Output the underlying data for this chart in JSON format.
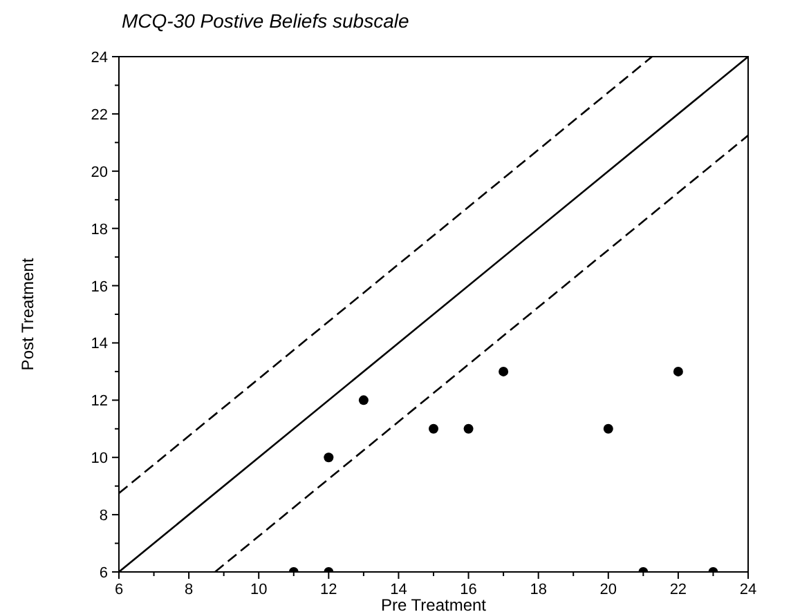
{
  "chart_data": {
    "type": "scatter",
    "title": "MCQ-30 Postive Beliefs subscale",
    "xlabel": "Pre Treatment",
    "ylabel": "Post Treatment",
    "xlim": [
      6,
      24
    ],
    "ylim": [
      6,
      24
    ],
    "xticks": [
      6,
      {
        "value": 7,
        "label": null
      },
      8,
      {
        "value": 9,
        "label": null
      },
      10,
      {
        "value": 11,
        "label": null
      },
      12,
      {
        "value": 13,
        "label": null
      },
      14,
      {
        "value": 15,
        "label": null
      },
      16,
      {
        "value": 17,
        "label": null
      },
      18,
      {
        "value": 19,
        "label": null
      },
      20,
      {
        "value": 21,
        "label": null
      },
      22,
      {
        "value": 23,
        "label": null
      },
      24
    ],
    "yticks": [
      6,
      {
        "value": 7,
        "label": null
      },
      8,
      {
        "value": 9,
        "label": null
      },
      10,
      {
        "value": 11,
        "label": null
      },
      12,
      {
        "value": 13,
        "label": null
      },
      14,
      {
        "value": 15,
        "label": null
      },
      16,
      {
        "value": 17,
        "label": null
      },
      18,
      {
        "value": 19,
        "label": null
      },
      20,
      {
        "value": 21,
        "label": null
      },
      22,
      {
        "value": 23,
        "label": null
      },
      24
    ],
    "grid": false,
    "series": [
      {
        "color": "#000000",
        "marker": "circle",
        "x": [
          11,
          12,
          12,
          13,
          15,
          16,
          17,
          20,
          21,
          22,
          23
        ],
        "values": [
          6,
          6,
          10,
          12,
          11,
          11,
          13,
          11,
          6,
          13,
          6
        ]
      },
      {
        "type": "line",
        "color": "#000000",
        "marker": "none",
        "line_style": "solid",
        "x": [
          6,
          24
        ],
        "values": [
          6,
          24
        ]
      },
      {
        "type": "line",
        "color": "#000000",
        "marker": "none",
        "line_style": "dashed",
        "x": [
          6,
          21.25
        ],
        "values": [
          8.75,
          24
        ]
      },
      {
        "type": "line",
        "color": "#000000",
        "marker": "none",
        "line_style": "dashed",
        "x": [
          8.75,
          24
        ],
        "values": [
          6,
          21.25
        ]
      }
    ]
  }
}
